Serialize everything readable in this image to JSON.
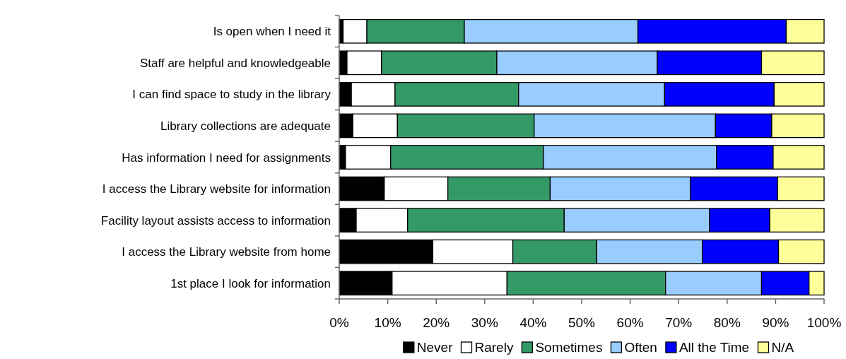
{
  "chart_data": {
    "type": "bar",
    "orientation": "horizontal",
    "stacked": true,
    "legend": "bottom",
    "categories": [
      "Is open when I need it",
      "Staff are helpful and knowledgeable",
      "I can find space to study in the library",
      "Library collections are adequate",
      "Has information I need for assignments",
      "I access the Library website for information",
      "Facility layout assists access to information",
      "I access the Library website from home",
      "1st place I look for information"
    ],
    "xlim": [
      0,
      100
    ],
    "xticks": [
      {
        "value": 0,
        "label": "0%"
      },
      {
        "value": 10,
        "label": "10%"
      },
      {
        "value": 20,
        "label": "20%"
      },
      {
        "value": 30,
        "label": "30%"
      },
      {
        "value": 40,
        "label": "40%"
      },
      {
        "value": 50,
        "label": "50%"
      },
      {
        "value": 60,
        "label": "60%"
      },
      {
        "value": 70,
        "label": "70%"
      },
      {
        "value": 80,
        "label": "80%"
      },
      {
        "value": 90,
        "label": "90%"
      },
      {
        "value": 100,
        "label": "100%"
      }
    ],
    "series": [
      {
        "name": "Never",
        "color": "#000000",
        "values": [
          0.8,
          1.6,
          2.5,
          2.8,
          1.3,
          9.3,
          3.5,
          19.3,
          10.9
        ]
      },
      {
        "name": "Rarely",
        "color": "#ffffff",
        "values": [
          4.9,
          7.1,
          9.0,
          9.2,
          9.3,
          13.1,
          10.6,
          16.5,
          23.7
        ]
      },
      {
        "name": "Sometimes",
        "color": "#339966",
        "values": [
          20.1,
          23.8,
          25.5,
          28.2,
          31.5,
          21.1,
          32.3,
          17.3,
          32.7
        ]
      },
      {
        "name": "Often",
        "color": "#99ccff",
        "values": [
          35.8,
          33.1,
          30.1,
          37.4,
          35.7,
          28.9,
          30.0,
          21.8,
          19.8
        ]
      },
      {
        "name": "All the Time",
        "color": "#0000ff",
        "values": [
          30.6,
          21.5,
          22.6,
          11.6,
          11.7,
          18.0,
          12.4,
          15.7,
          9.8
        ]
      },
      {
        "name": "N/A",
        "color": "#ffff99",
        "values": [
          7.8,
          12.9,
          10.3,
          10.8,
          10.5,
          9.6,
          11.2,
          9.4,
          3.1
        ]
      }
    ]
  }
}
